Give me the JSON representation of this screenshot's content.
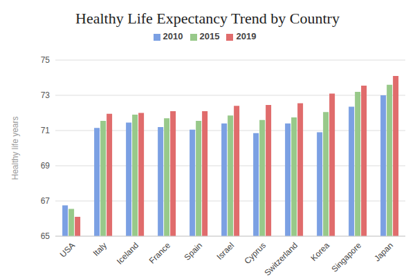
{
  "chart_data": {
    "type": "bar",
    "title": "Healthy Life Expectancy Trend by Country",
    "y_label": "Healthy life years",
    "categories": [
      "USA",
      "Italy",
      "Iceland",
      "France",
      "Spain",
      "Israel",
      "Cyprus",
      "Switzerland",
      "Korea",
      "Singapore",
      "Japan"
    ],
    "series": [
      {
        "name": "2010",
        "color": "#7ba0e3",
        "values": [
          66.75,
          71.15,
          71.45,
          71.2,
          71.05,
          71.4,
          70.85,
          71.4,
          70.9,
          72.35,
          73.0
        ]
      },
      {
        "name": "2015",
        "color": "#98c98a",
        "values": [
          66.55,
          71.55,
          71.9,
          71.7,
          71.55,
          71.85,
          71.6,
          71.75,
          72.05,
          73.2,
          73.6
        ]
      },
      {
        "name": "2019",
        "color": "#e06c6c",
        "values": [
          66.1,
          71.95,
          72.0,
          72.1,
          72.1,
          72.4,
          72.45,
          72.55,
          73.1,
          73.55,
          74.1
        ]
      }
    ],
    "ylim": [
      65,
      75
    ],
    "yticks": [
      65,
      67,
      69,
      71,
      73,
      75
    ],
    "grid": true,
    "legend": "top"
  }
}
